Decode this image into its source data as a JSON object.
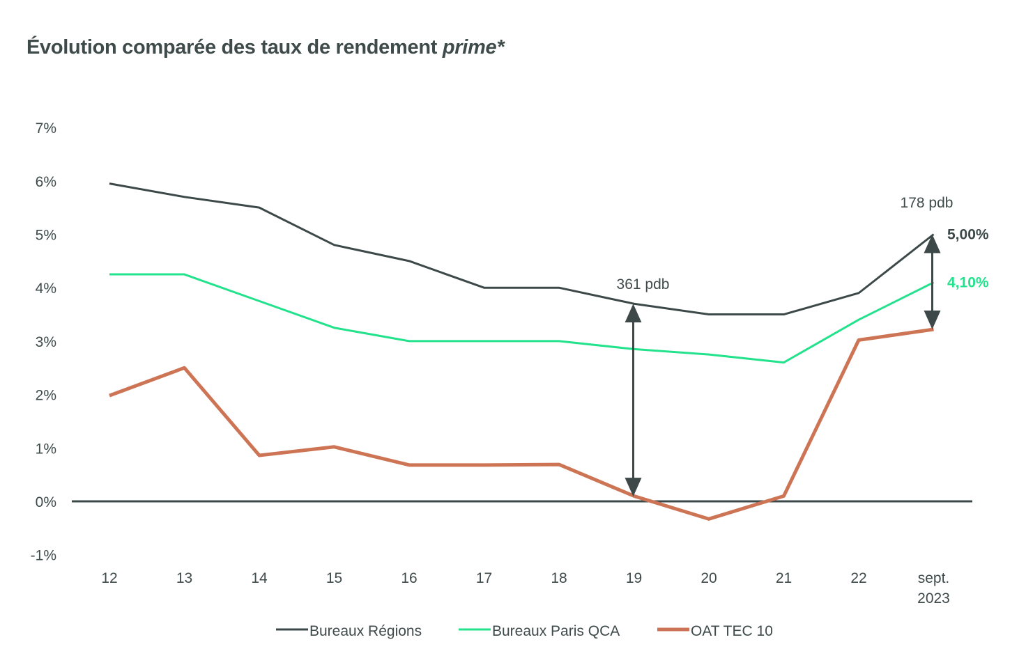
{
  "chart_data": {
    "type": "line",
    "title": "Évolution comparée des taux de rendement",
    "title_italic": "prime*",
    "categories": [
      "12",
      "13",
      "14",
      "15",
      "16",
      "17",
      "18",
      "19",
      "20",
      "21",
      "22",
      "sept. 2023"
    ],
    "category_lines": [
      [
        "12"
      ],
      [
        "13"
      ],
      [
        "14"
      ],
      [
        "15"
      ],
      [
        "16"
      ],
      [
        "17"
      ],
      [
        "18"
      ],
      [
        "19"
      ],
      [
        "20"
      ],
      [
        "21"
      ],
      [
        "22"
      ],
      [
        "sept.",
        "2023"
      ]
    ],
    "y_ticks": [
      "-1%",
      "0%",
      "1%",
      "2%",
      "3%",
      "4%",
      "5%",
      "6%",
      "7%"
    ],
    "ylim": [
      -1,
      7
    ],
    "grid": false,
    "legend_position": "bottom",
    "series": [
      {
        "name": "Bureaux Régions",
        "color": "#3d4949",
        "values": [
          5.95,
          5.7,
          5.5,
          4.8,
          4.5,
          4.0,
          4.0,
          3.7,
          3.5,
          3.5,
          3.9,
          5.0
        ]
      },
      {
        "name": "Bureaux Paris QCA",
        "color": "#22e28c",
        "values": [
          4.25,
          4.25,
          3.75,
          3.25,
          3.0,
          3.0,
          3.0,
          2.85,
          2.75,
          2.6,
          3.4,
          4.1
        ]
      },
      {
        "name": "OAT TEC 10",
        "color": "#cd7455",
        "values": [
          1.98,
          2.5,
          0.86,
          1.02,
          0.68,
          0.68,
          0.69,
          0.1,
          -0.33,
          0.1,
          3.02,
          3.22
        ]
      }
    ],
    "annotations": [
      {
        "text": "361 pdb",
        "category": "19",
        "from": 0.09,
        "to": 3.7
      },
      {
        "text": "178 pdb",
        "category": "sept. 2023",
        "from": 3.22,
        "to": 5.0
      }
    ],
    "end_labels": [
      {
        "text": "5,00%",
        "series": "Bureaux Régions"
      },
      {
        "text": "4,10%",
        "series": "Bureaux Paris QCA"
      }
    ]
  }
}
